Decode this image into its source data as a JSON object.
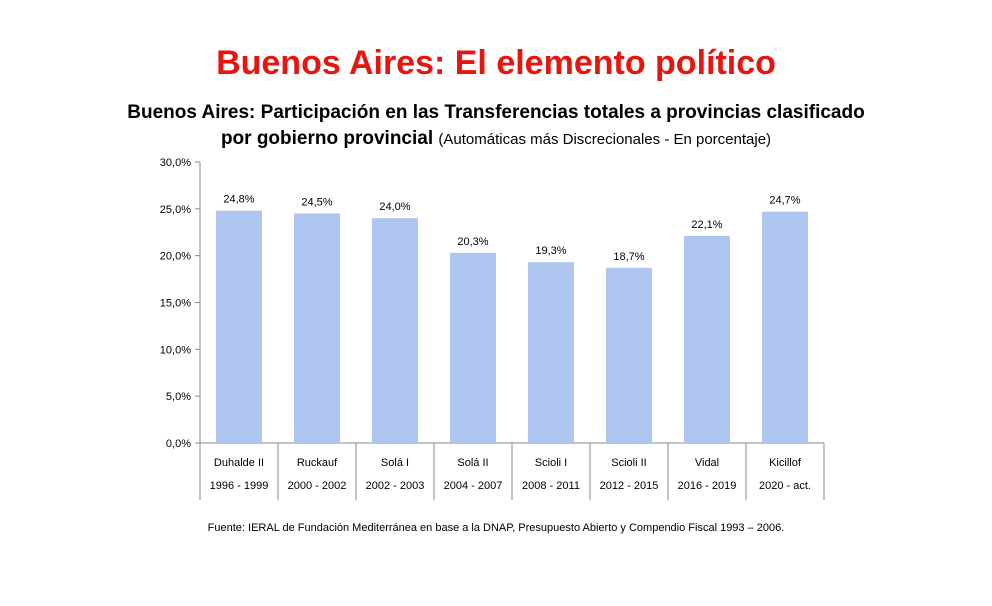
{
  "title": "Buenos Aires: El elemento político",
  "subtitle": {
    "main": "Buenos Aires: Participación en las Transferencias totales a provincias clasificado por gobierno provincial",
    "note": "(Automáticas más Discrecionales - En porcentaje)"
  },
  "source": "Fuente: IERAL de Fundación Mediterránea en base a la DNAP, Presupuesto Abierto y Compendio Fiscal 1993 – 2006.",
  "colors": {
    "title": "#e8150f",
    "bar": "#aec5ef",
    "axis": "#888888"
  },
  "chart_data": {
    "type": "bar",
    "categories": [
      "Duhalde II",
      "Ruckauf",
      "Solá I",
      "Solá II",
      "Scioli I",
      "Scioli II",
      "Vidal",
      "Kicillof"
    ],
    "periods": [
      "1996 - 1999",
      "2000 - 2002",
      "2002 - 2003",
      "2004 - 2007",
      "2008 - 2011",
      "2012 - 2015",
      "2016 - 2019",
      "2020 - act."
    ],
    "values": [
      24.8,
      24.5,
      24.0,
      20.3,
      19.3,
      18.7,
      22.1,
      24.7
    ],
    "data_labels": [
      "24,8%",
      "24,5%",
      "24,0%",
      "20,3%",
      "19,3%",
      "18,7%",
      "22,1%",
      "24,7%"
    ],
    "y_ticks": [
      0,
      5,
      10,
      15,
      20,
      25,
      30
    ],
    "y_tick_labels": [
      "0,0%",
      "5,0%",
      "10,0%",
      "15,0%",
      "20,0%",
      "25,0%",
      "30,0%"
    ],
    "ylim": [
      0,
      30
    ],
    "grid": false,
    "legend": "none"
  }
}
